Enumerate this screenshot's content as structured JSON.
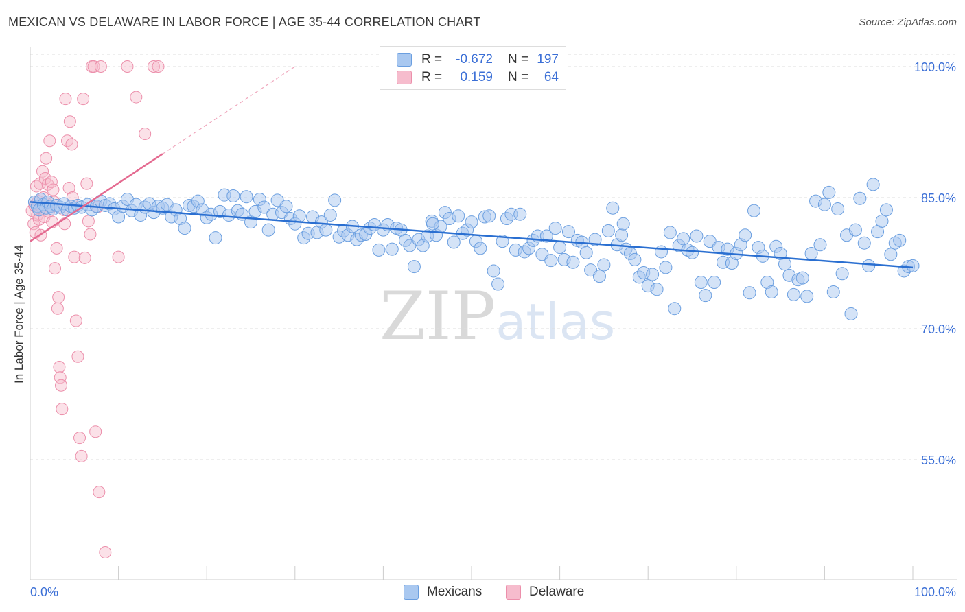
{
  "title": "MEXICAN VS DELAWARE IN LABOR FORCE | AGE 35-44 CORRELATION CHART",
  "source": "Source: ZipAtlas.com",
  "watermark": {
    "zip": "ZIP",
    "atlas": "atlas"
  },
  "legend": {
    "rows": [
      {
        "r_label": "R =",
        "r_value": "-0.672",
        "n_label": "N =",
        "n_value": "197"
      },
      {
        "r_label": "R =",
        "r_value": "0.159",
        "n_label": "N =",
        "n_value": "64"
      }
    ]
  },
  "bottom_legend": [
    "Mexicans",
    "Delaware"
  ],
  "colors": {
    "blue_fill": "#a9c8f0",
    "blue_stroke": "#6b9fe0",
    "blue_line": "#2a6fd1",
    "pink_fill": "#f6bccd",
    "pink_stroke": "#ec8fab",
    "pink_line": "#e46a90",
    "axis_label": "#3b6fd6",
    "grid": "#dddddd"
  },
  "chart_data": {
    "type": "scatter",
    "title": "MEXICAN VS DELAWARE IN LABOR FORCE | AGE 35-44 CORRELATION CHART",
    "xlabel": "",
    "ylabel": "In Labor Force | Age 35-44",
    "xlim": [
      0,
      100
    ],
    "ylim": [
      40,
      100
    ],
    "x_tick_labels": [
      "0.0%",
      "100.0%"
    ],
    "y_ticks": [
      55,
      70,
      85,
      100
    ],
    "y_tick_labels": [
      "55.0%",
      "70.0%",
      "85.0%",
      "100.0%"
    ],
    "grid": true,
    "legend_position": "top-center",
    "series": [
      {
        "name": "Mexicans",
        "color": "#6b9fe0",
        "r": -0.672,
        "n": 197,
        "trend": {
          "x": [
            0,
            100
          ],
          "y": [
            84.5,
            77.0
          ]
        },
        "points": [
          [
            0.5,
            84.5
          ],
          [
            0.8,
            84.0
          ],
          [
            1.0,
            83.6
          ],
          [
            1.2,
            84.8
          ],
          [
            1.5,
            84.2
          ],
          [
            1.8,
            83.8
          ],
          [
            2.0,
            84.5
          ],
          [
            2.3,
            84.0
          ],
          [
            2.6,
            83.7
          ],
          [
            3.0,
            84.1
          ],
          [
            3.4,
            83.9
          ],
          [
            3.8,
            84.3
          ],
          [
            4.2,
            83.6
          ],
          [
            4.6,
            84.0
          ],
          [
            5.0,
            83.8
          ],
          [
            5.4,
            84.1
          ],
          [
            5.8,
            83.9
          ],
          [
            6.5,
            84.2
          ],
          [
            7.0,
            83.6
          ],
          [
            7.5,
            84.0
          ],
          [
            8.0,
            84.6
          ],
          [
            8.5,
            84.1
          ],
          [
            9.0,
            84.3
          ],
          [
            9.5,
            83.7
          ],
          [
            10.0,
            82.8
          ],
          [
            10.5,
            84.0
          ],
          [
            11.0,
            84.8
          ],
          [
            11.5,
            83.5
          ],
          [
            12.0,
            84.2
          ],
          [
            12.5,
            83.0
          ],
          [
            13.0,
            83.9
          ],
          [
            13.5,
            84.3
          ],
          [
            14.0,
            83.3
          ],
          [
            14.5,
            84.0
          ],
          [
            15.0,
            83.8
          ],
          [
            15.5,
            84.2
          ],
          [
            16.0,
            82.8
          ],
          [
            16.5,
            83.6
          ],
          [
            17.0,
            82.6
          ],
          [
            17.5,
            81.5
          ],
          [
            18.0,
            84.1
          ],
          [
            18.5,
            84.0
          ],
          [
            19.0,
            84.6
          ],
          [
            19.5,
            83.6
          ],
          [
            20.0,
            82.7
          ],
          [
            20.5,
            83.1
          ],
          [
            21.0,
            80.4
          ],
          [
            21.5,
            83.4
          ],
          [
            22.0,
            85.3
          ],
          [
            22.5,
            83.0
          ],
          [
            23.0,
            85.2
          ],
          [
            23.5,
            83.5
          ],
          [
            24.0,
            83.1
          ],
          [
            24.5,
            85.1
          ],
          [
            25.0,
            82.2
          ],
          [
            25.5,
            83.4
          ],
          [
            26.0,
            84.8
          ],
          [
            26.5,
            83.9
          ],
          [
            27.0,
            81.3
          ],
          [
            27.5,
            83.1
          ],
          [
            28.0,
            84.7
          ],
          [
            28.5,
            83.3
          ],
          [
            29.0,
            84.0
          ],
          [
            29.5,
            82.6
          ],
          [
            30.0,
            82.0
          ],
          [
            30.5,
            82.9
          ],
          [
            31.0,
            80.4
          ],
          [
            31.5,
            80.9
          ],
          [
            32.0,
            82.8
          ],
          [
            32.5,
            81.0
          ],
          [
            33.0,
            82.2
          ],
          [
            33.5,
            81.3
          ],
          [
            34.0,
            83.0
          ],
          [
            34.5,
            84.7
          ],
          [
            35.0,
            80.5
          ],
          [
            35.5,
            81.2
          ],
          [
            36.0,
            80.7
          ],
          [
            36.5,
            81.7
          ],
          [
            37.0,
            80.2
          ],
          [
            37.5,
            80.7
          ],
          [
            38.0,
            80.8
          ],
          [
            38.5,
            81.5
          ],
          [
            39.0,
            81.9
          ],
          [
            39.5,
            79.0
          ],
          [
            40.0,
            81.3
          ],
          [
            40.5,
            81.9
          ],
          [
            41.0,
            79.1
          ],
          [
            41.5,
            81.5
          ],
          [
            42.0,
            81.3
          ],
          [
            42.5,
            80.1
          ],
          [
            43.0,
            79.5
          ],
          [
            43.5,
            77.1
          ],
          [
            44.0,
            80.2
          ],
          [
            44.5,
            79.5
          ],
          [
            45.0,
            80.6
          ],
          [
            45.5,
            82.3
          ],
          [
            46.0,
            80.7
          ],
          [
            46.5,
            81.7
          ],
          [
            47.0,
            83.3
          ],
          [
            47.5,
            82.6
          ],
          [
            48.0,
            79.9
          ],
          [
            48.5,
            82.9
          ],
          [
            49.0,
            80.9
          ],
          [
            49.5,
            81.3
          ],
          [
            50.0,
            82.2
          ],
          [
            50.5,
            80.0
          ],
          [
            51.0,
            79.2
          ],
          [
            51.5,
            82.8
          ],
          [
            52.0,
            82.9
          ],
          [
            52.5,
            76.6
          ],
          [
            53.0,
            75.1
          ],
          [
            53.5,
            80.0
          ],
          [
            54.0,
            82.6
          ],
          [
            54.5,
            83.1
          ],
          [
            55.0,
            79.0
          ],
          [
            55.5,
            83.1
          ],
          [
            56.0,
            78.8
          ],
          [
            56.5,
            79.2
          ],
          [
            57.0,
            80.1
          ],
          [
            57.5,
            80.6
          ],
          [
            58.0,
            78.5
          ],
          [
            58.5,
            80.6
          ],
          [
            59.0,
            77.8
          ],
          [
            59.5,
            81.5
          ],
          [
            60.0,
            79.3
          ],
          [
            60.5,
            77.9
          ],
          [
            61.0,
            81.1
          ],
          [
            61.5,
            77.6
          ],
          [
            62.0,
            80.1
          ],
          [
            62.5,
            79.9
          ],
          [
            63.0,
            78.7
          ],
          [
            63.5,
            76.7
          ],
          [
            64.0,
            80.2
          ],
          [
            64.5,
            76.0
          ],
          [
            65.0,
            77.3
          ],
          [
            65.5,
            81.2
          ],
          [
            66.0,
            83.8
          ],
          [
            66.5,
            79.6
          ],
          [
            67.0,
            80.7
          ],
          [
            67.5,
            79.1
          ],
          [
            68.0,
            78.6
          ],
          [
            68.5,
            77.9
          ],
          [
            69.0,
            75.9
          ],
          [
            69.5,
            76.4
          ],
          [
            70.0,
            74.9
          ],
          [
            70.5,
            76.2
          ],
          [
            71.0,
            74.5
          ],
          [
            71.5,
            78.8
          ],
          [
            72.0,
            77.0
          ],
          [
            72.5,
            81.0
          ],
          [
            73.0,
            72.3
          ],
          [
            73.5,
            79.5
          ],
          [
            74.0,
            80.3
          ],
          [
            74.5,
            79.0
          ],
          [
            75.0,
            78.7
          ],
          [
            75.5,
            80.6
          ],
          [
            76.0,
            75.3
          ],
          [
            76.5,
            73.8
          ],
          [
            77.0,
            80.0
          ],
          [
            77.5,
            75.3
          ],
          [
            78.0,
            79.3
          ],
          [
            78.5,
            77.6
          ],
          [
            79.0,
            79.1
          ],
          [
            79.5,
            77.5
          ],
          [
            80.0,
            78.6
          ],
          [
            80.5,
            79.6
          ],
          [
            81.0,
            80.7
          ],
          [
            81.5,
            74.1
          ],
          [
            82.0,
            83.5
          ],
          [
            82.5,
            79.3
          ],
          [
            83.0,
            78.3
          ],
          [
            83.5,
            75.3
          ],
          [
            84.0,
            74.2
          ],
          [
            84.5,
            79.4
          ],
          [
            85.0,
            78.6
          ],
          [
            85.5,
            77.4
          ],
          [
            86.0,
            76.1
          ],
          [
            86.5,
            73.9
          ],
          [
            87.0,
            75.6
          ],
          [
            87.5,
            75.8
          ],
          [
            88.0,
            73.7
          ],
          [
            88.5,
            78.6
          ],
          [
            89.0,
            84.6
          ],
          [
            89.5,
            79.6
          ],
          [
            90.0,
            84.2
          ],
          [
            90.5,
            85.6
          ],
          [
            91.0,
            74.2
          ],
          [
            91.5,
            83.7
          ],
          [
            92.0,
            76.3
          ],
          [
            92.5,
            80.7
          ],
          [
            93.0,
            71.7
          ],
          [
            93.5,
            81.3
          ],
          [
            94.0,
            84.9
          ],
          [
            94.5,
            79.8
          ],
          [
            95.0,
            77.2
          ],
          [
            95.5,
            86.5
          ],
          [
            96.0,
            81.1
          ],
          [
            96.5,
            82.3
          ],
          [
            97.0,
            83.6
          ],
          [
            97.5,
            78.5
          ],
          [
            98.0,
            79.8
          ],
          [
            98.5,
            80.1
          ],
          [
            99.0,
            76.6
          ],
          [
            99.5,
            77.1
          ],
          [
            100.0,
            77.2
          ],
          [
            45.6,
            82.0
          ],
          [
            67.2,
            82.0
          ]
        ]
      },
      {
        "name": "Delaware",
        "color": "#ec8fab",
        "r": 0.159,
        "n": 64,
        "trend": {
          "x": [
            0,
            15
          ],
          "y": [
            80.0,
            90.0
          ]
        },
        "trend_dashed": {
          "x": [
            15,
            30
          ],
          "y": [
            90.0,
            100.0
          ]
        },
        "points": [
          [
            0.2,
            83.5
          ],
          [
            0.4,
            82.0
          ],
          [
            0.5,
            84.1
          ],
          [
            0.6,
            81.0
          ],
          [
            0.7,
            86.3
          ],
          [
            0.8,
            83.0
          ],
          [
            0.9,
            84.6
          ],
          [
            1.0,
            82.5
          ],
          [
            1.1,
            86.6
          ],
          [
            1.2,
            80.7
          ],
          [
            1.3,
            83.9
          ],
          [
            1.4,
            88.0
          ],
          [
            1.5,
            85.0
          ],
          [
            1.6,
            82.8
          ],
          [
            1.7,
            87.2
          ],
          [
            1.8,
            89.5
          ],
          [
            1.9,
            84.3
          ],
          [
            2.0,
            86.5
          ],
          [
            2.1,
            83.4
          ],
          [
            2.2,
            91.5
          ],
          [
            2.3,
            84.0
          ],
          [
            2.4,
            86.8
          ],
          [
            2.5,
            82.2
          ],
          [
            2.6,
            85.9
          ],
          [
            2.7,
            84.5
          ],
          [
            2.8,
            76.9
          ],
          [
            3.0,
            79.2
          ],
          [
            3.1,
            72.3
          ],
          [
            3.2,
            73.6
          ],
          [
            3.3,
            65.6
          ],
          [
            3.4,
            64.4
          ],
          [
            3.5,
            63.5
          ],
          [
            3.6,
            60.8
          ],
          [
            3.8,
            83.6
          ],
          [
            3.9,
            82.0
          ],
          [
            4.0,
            96.3
          ],
          [
            4.2,
            91.5
          ],
          [
            4.4,
            86.1
          ],
          [
            4.5,
            93.7
          ],
          [
            4.7,
            91.1
          ],
          [
            4.8,
            85.0
          ],
          [
            5.0,
            78.2
          ],
          [
            5.2,
            70.9
          ],
          [
            5.4,
            66.8
          ],
          [
            5.6,
            57.5
          ],
          [
            5.8,
            55.4
          ],
          [
            6.0,
            96.3
          ],
          [
            6.2,
            78.1
          ],
          [
            6.4,
            86.6
          ],
          [
            6.6,
            82.3
          ],
          [
            6.8,
            80.8
          ],
          [
            7.0,
            100.0
          ],
          [
            7.2,
            100.0
          ],
          [
            7.4,
            58.2
          ],
          [
            7.6,
            83.9
          ],
          [
            7.8,
            51.3
          ],
          [
            8.0,
            100.0
          ],
          [
            8.5,
            44.4
          ],
          [
            11.0,
            100.0
          ],
          [
            12.0,
            96.5
          ],
          [
            13.0,
            92.3
          ],
          [
            14.0,
            100.0
          ],
          [
            14.5,
            100.0
          ],
          [
            10.0,
            78.2
          ]
        ]
      }
    ]
  }
}
